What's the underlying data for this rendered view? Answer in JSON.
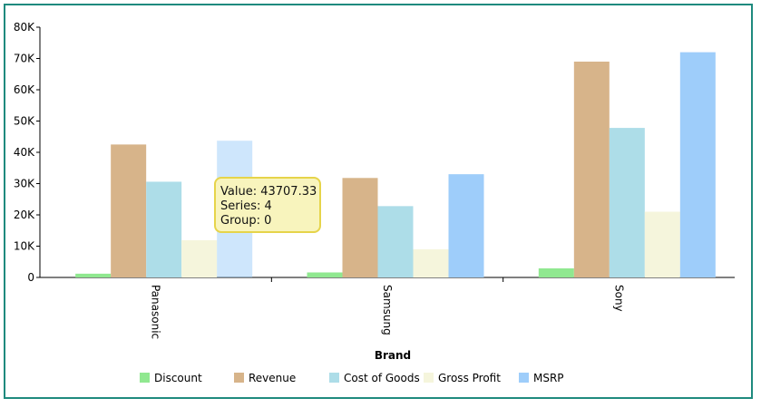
{
  "chart_data": {
    "type": "bar",
    "categories": [
      "Panasonic",
      "Samsung",
      "Sony"
    ],
    "series": [
      {
        "name": "Discount",
        "values": [
          1200,
          1600,
          2900
        ],
        "color": "#90e890"
      },
      {
        "name": "Revenue",
        "values": [
          42500,
          31800,
          69000
        ],
        "color": "#d7b48a"
      },
      {
        "name": "Cost of Goods",
        "values": [
          30600,
          22800,
          47800
        ],
        "color": "#addde8"
      },
      {
        "name": "Gross Profit",
        "values": [
          11900,
          9000,
          21000
        ],
        "color": "#f5f5dc"
      },
      {
        "name": "MSRP",
        "values": [
          43707.33,
          33000,
          72000
        ],
        "color": "#9ecdfa"
      }
    ],
    "title": "",
    "xlabel": "Brand",
    "ylabel": "",
    "ylim": [
      0,
      80000
    ],
    "yticks": [
      0,
      10000,
      20000,
      30000,
      40000,
      50000,
      60000,
      70000,
      80000
    ],
    "ytick_labels": [
      "0",
      "10K",
      "20K",
      "30K",
      "40K",
      "50K",
      "60K",
      "70K",
      "80K"
    ],
    "grid": false,
    "legend_position": "bottom",
    "highlight": {
      "series_index": 4,
      "category_index": 0
    },
    "tooltip": {
      "lines": [
        "Value: 43707.33",
        "Series: 4",
        "Group: 0"
      ],
      "fill": "#f8f4bd",
      "border": "#e6d44a"
    }
  },
  "colors": {
    "frame_border": "#1f8a7e",
    "axis": "#000000"
  }
}
